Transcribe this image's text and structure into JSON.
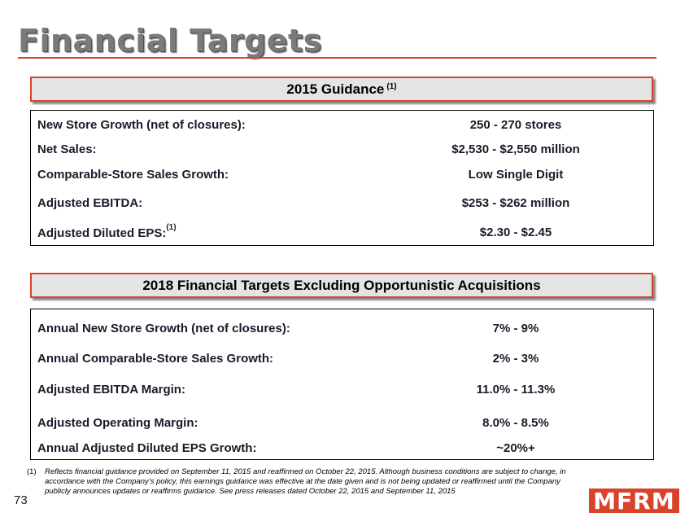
{
  "title": "Financial Targets",
  "guidance": {
    "header": "2015 Guidance",
    "header_note": "(1)",
    "rows": [
      {
        "label": "New Store Growth (net of closures):",
        "value": "250 - 270 stores"
      },
      {
        "label": "Net Sales:",
        "value": "$2,530 - $2,550 million"
      },
      {
        "label": "Comparable-Store Sales Growth:",
        "value": "Low Single Digit"
      },
      {
        "label": "Adjusted EBITDA:",
        "value": "$253 - $262 million"
      },
      {
        "label": "Adjusted Diluted EPS:",
        "label_note": "(1)",
        "value": "$2.30 - $2.45"
      }
    ]
  },
  "targets": {
    "header": "2018 Financial Targets Excluding Opportunistic Acquisitions",
    "rows": [
      {
        "label": "Annual New Store Growth (net of closures):",
        "value": "7% - 9%"
      },
      {
        "label": "Annual Comparable-Store Sales Growth:",
        "value": "2% -  3%"
      },
      {
        "label": "Adjusted EBITDA Margin:",
        "value": "11.0% - 11.3%"
      },
      {
        "label": "Adjusted Operating Margin:",
        "value": "8.0% - 8.5%"
      },
      {
        "label": "Annual Adjusted Diluted EPS Growth:",
        "value": "~20%+"
      }
    ]
  },
  "footnote": {
    "number": "(1)",
    "text": "Reflects financial guidance provided on September 11, 2015 and reaffirmed on October 22, 2015.  Although business conditions are subject to change, in accordance with the Company’s policy, this earnings guidance was effective at the date given and is not being updated or reaffirmed until the Company publicly announces updates or reaffirms guidance. See press releases dated October 22, 2015 and September 11, 2015"
  },
  "page_number": "73",
  "logo": "MFRM",
  "colors": {
    "accent": "#d8432a",
    "header_bg": "#e4e4e4",
    "title": "#7a7a7a"
  }
}
